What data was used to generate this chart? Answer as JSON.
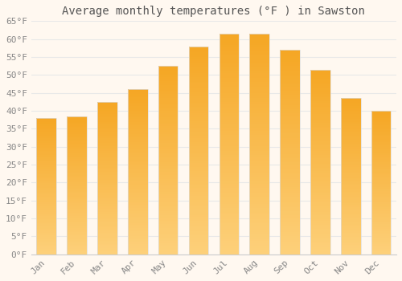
{
  "title": "Average monthly temperatures (°F ) in Sawston",
  "months": [
    "Jan",
    "Feb",
    "Mar",
    "Apr",
    "May",
    "Jun",
    "Jul",
    "Aug",
    "Sep",
    "Oct",
    "Nov",
    "Dec"
  ],
  "values": [
    38,
    38.5,
    42.5,
    46,
    52.5,
    58,
    61.5,
    61.5,
    57,
    51.5,
    43.5,
    40
  ],
  "bar_color_top": "#F5A623",
  "bar_color_bottom": "#FDD07A",
  "bar_edge_color": "#DDDDDD",
  "background_color": "#FFF8F0",
  "plot_bg_color": "#FFF8F0",
  "grid_color": "#E8E8E8",
  "text_color": "#888888",
  "title_color": "#555555",
  "ylim": [
    0,
    65
  ],
  "ytick_step": 5,
  "title_fontsize": 10,
  "tick_fontsize": 8,
  "bar_width": 0.65
}
